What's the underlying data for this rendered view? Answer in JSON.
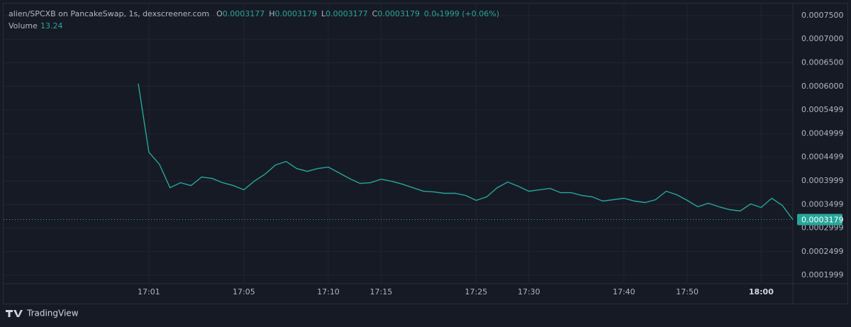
{
  "chart_data": {
    "type": "line",
    "title": "alien/SPCXB on PancakeSwap, 1s, dexscreener.com",
    "ohlc": [
      {
        "label": "O",
        "value": 0.0003177
      },
      {
        "label": "H",
        "value": 0.0003179
      },
      {
        "label": "L",
        "value": 0.0003177
      },
      {
        "label": "C",
        "value": 0.0003179
      }
    ],
    "change": "0.0₆1999 (+0.06%)",
    "volume_label": "Volume",
    "volume": 13.24,
    "last_price": 0.0003179,
    "categories": [
      null,
      "17:01",
      null,
      null,
      null,
      null,
      null,
      null,
      null,
      null,
      "17:05",
      null,
      null,
      null,
      null,
      null,
      null,
      null,
      "17:10",
      null,
      null,
      null,
      null,
      "17:15",
      null,
      null,
      null,
      null,
      null,
      null,
      null,
      null,
      "17:25",
      null,
      null,
      null,
      null,
      "17:30",
      null,
      null,
      null,
      null,
      null,
      null,
      null,
      null,
      "17:40",
      null,
      null,
      null,
      null,
      null,
      "17:50",
      null,
      null,
      null,
      null,
      null,
      null,
      "18:00",
      null,
      null,
      null
    ],
    "series": [
      {
        "name": "alien/SPCXB",
        "color": "#26a69a",
        "values": [
          0.000606,
          0.0004605,
          0.000435,
          0.0003855,
          0.000396,
          0.00039,
          0.000408,
          0.000405,
          0.000396,
          0.00039,
          0.000381,
          0.0003995,
          0.000414,
          0.0004335,
          0.000441,
          0.000426,
          0.00042,
          0.000426,
          0.000429,
          0.000417,
          0.000405,
          0.0003945,
          0.000396,
          0.0004035,
          0.000399,
          0.000393,
          0.0003855,
          0.000378,
          0.0003765,
          0.0003735,
          0.0003735,
          0.000369,
          0.0003585,
          0.000366,
          0.0003855,
          0.0003975,
          0.0003885,
          0.000378,
          0.000381,
          0.000384,
          0.000375,
          0.000375,
          0.000369,
          0.000366,
          0.000357,
          0.00036,
          0.000363,
          0.000357,
          0.000354,
          0.00036,
          0.000378,
          0.0003705,
          0.0003585,
          0.000345,
          0.0003525,
          0.000345,
          0.000339,
          0.000336,
          0.000351,
          0.0003435,
          0.000363,
          0.000348,
          0.0003179
        ]
      }
    ],
    "ylim": [
      0.000182,
      0.0007755
    ],
    "yticks": [
      {
        "value": 0.00075,
        "label": "0.0007500"
      },
      {
        "value": 0.0007,
        "label": "0.0007000"
      },
      {
        "value": 0.00065,
        "label": "0.0006500"
      },
      {
        "value": 0.0006,
        "label": "0.0006000"
      },
      0.0005499,
      0.0004999,
      0.0004499,
      0.0003999,
      0.0003499,
      0.0002999,
      0.0002499,
      0.0001999
    ],
    "grid": true,
    "footer": "TradingView"
  }
}
